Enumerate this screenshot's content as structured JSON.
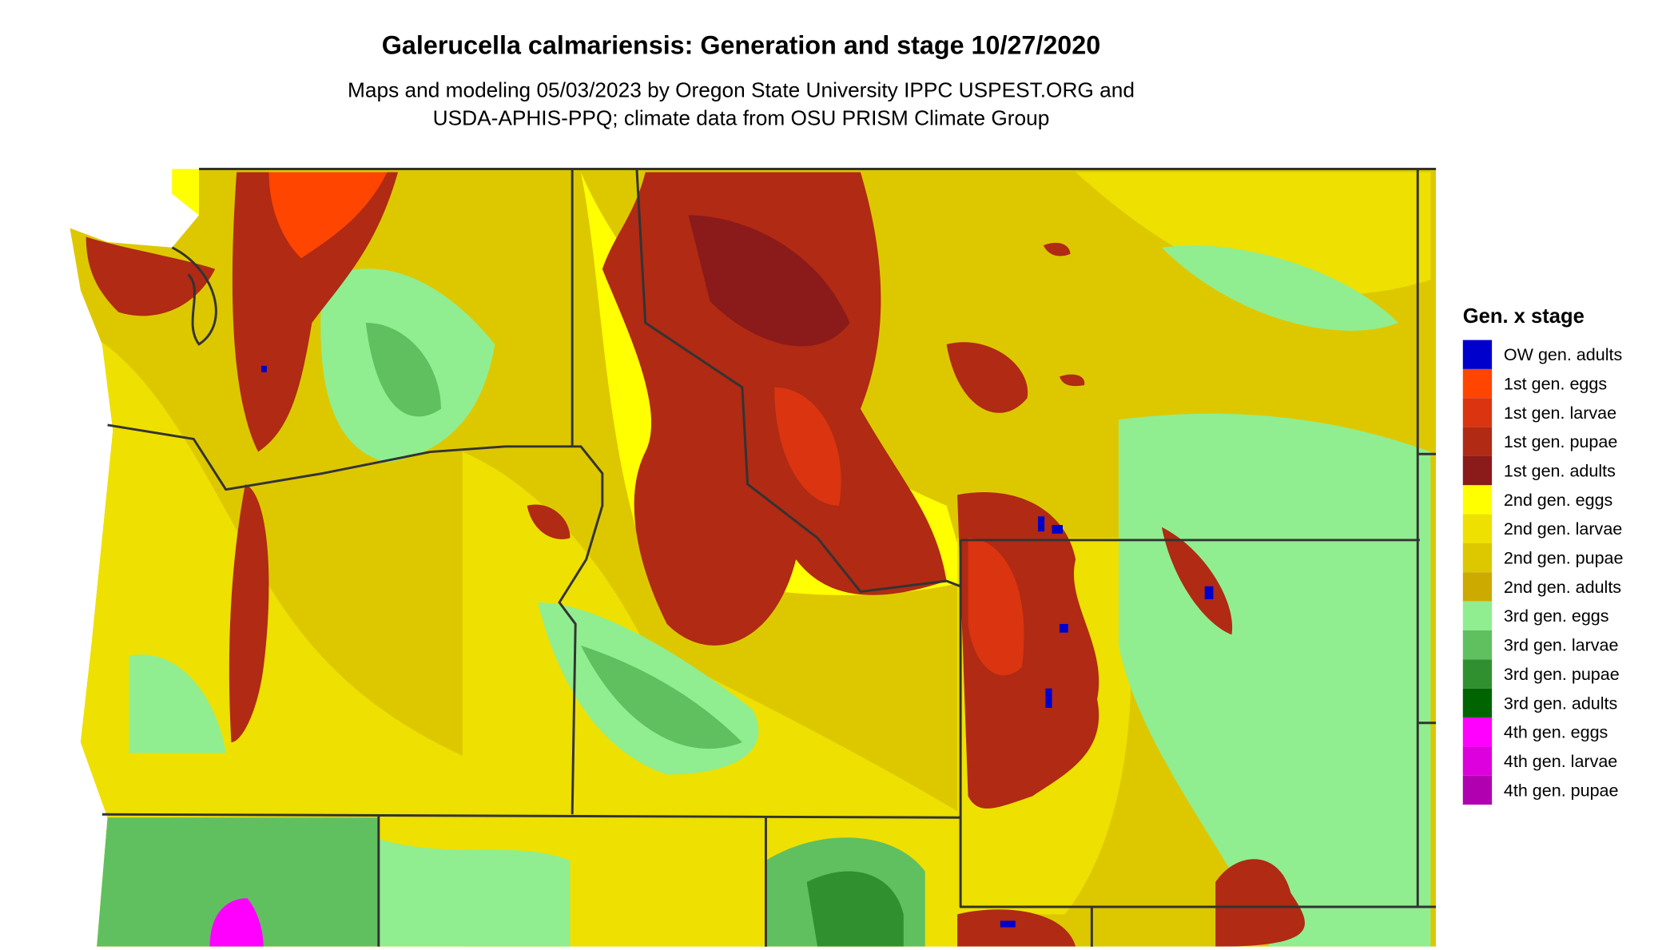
{
  "title": "Galerucella calmariensis: Generation and stage 10/27/2020",
  "subtitle_lines": [
    "Maps and modeling 05/03/2023 by Oregon State University IPPC USPEST.ORG and",
    "USDA-APHIS-PPQ; climate data from OSU PRISM Climate Group"
  ],
  "legend": {
    "title": "Gen. x stage",
    "items": [
      {
        "label": "OW gen. adults",
        "color": "#0000CD"
      },
      {
        "label": "1st gen. eggs",
        "color": "#FF4500"
      },
      {
        "label": "1st gen. larvae",
        "color": "#DA3510"
      },
      {
        "label": "1st gen. pupae",
        "color": "#B02A14"
      },
      {
        "label": "1st gen. adults",
        "color": "#8B1A1A"
      },
      {
        "label": "2nd gen. eggs",
        "color": "#FFFF00"
      },
      {
        "label": "2nd gen. larvae",
        "color": "#EEE000"
      },
      {
        "label": "2nd gen. pupae",
        "color": "#DDC800"
      },
      {
        "label": "2nd gen. adults",
        "color": "#CDAA00"
      },
      {
        "label": "3rd gen. eggs",
        "color": "#90EE90"
      },
      {
        "label": "3rd gen. larvae",
        "color": "#60C060"
      },
      {
        "label": "3rd gen. pupae",
        "color": "#309030"
      },
      {
        "label": "3rd gen. adults",
        "color": "#006400"
      },
      {
        "label": "4th gen. eggs",
        "color": "#FF00FF"
      },
      {
        "label": "4th gen. larvae",
        "color": "#DD00DD"
      },
      {
        "label": "4th gen. pupae",
        "color": "#B000B0"
      }
    ]
  }
}
